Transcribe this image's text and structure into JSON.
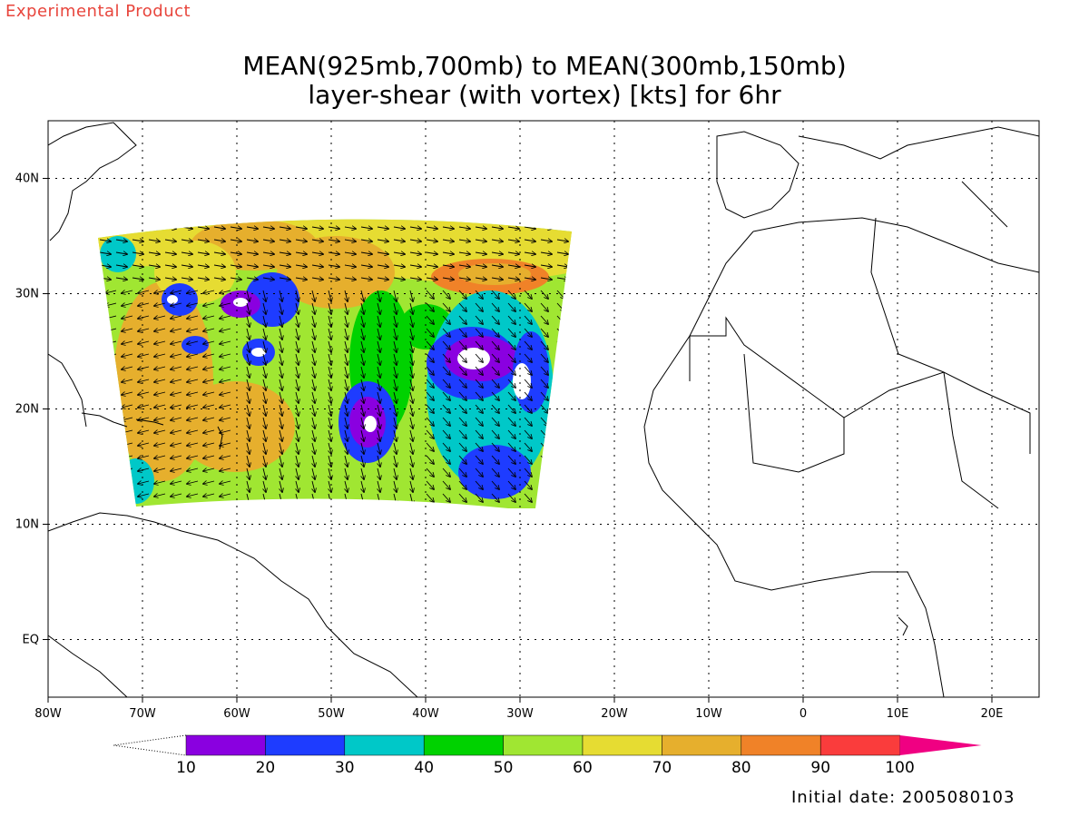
{
  "product_label": "Experimental Product",
  "title": {
    "line1": "MEAN(925mb,700mb) to MEAN(300mb,150mb)",
    "line2": "layer-shear (with vortex) [kts] for 6hr"
  },
  "map": {
    "lon_range": [
      -80,
      25
    ],
    "lat_range": [
      -5,
      45
    ],
    "x_ticks": [
      {
        "lon": -80,
        "label": "80W"
      },
      {
        "lon": -70,
        "label": "70W"
      },
      {
        "lon": -60,
        "label": "60W"
      },
      {
        "lon": -50,
        "label": "50W"
      },
      {
        "lon": -40,
        "label": "40W"
      },
      {
        "lon": -30,
        "label": "30W"
      },
      {
        "lon": -20,
        "label": "20W"
      },
      {
        "lon": -10,
        "label": "10W"
      },
      {
        "lon": 0,
        "label": "0"
      },
      {
        "lon": 10,
        "label": "10E"
      },
      {
        "lon": 20,
        "label": "20E"
      }
    ],
    "y_ticks": [
      {
        "lat": 0,
        "label": "EQ"
      },
      {
        "lat": 10,
        "label": "10N"
      },
      {
        "lat": 20,
        "label": "20N"
      },
      {
        "lat": 30,
        "label": "30N"
      },
      {
        "lat": 40,
        "label": "40N"
      }
    ],
    "grid": true
  },
  "colorbar": {
    "labels": [
      "10",
      "20",
      "30",
      "40",
      "50",
      "60",
      "70",
      "80",
      "90",
      "100"
    ],
    "colors": [
      "#8a00e0",
      "#1e3cff",
      "#00c8c8",
      "#00d200",
      "#a0e632",
      "#e6dc32",
      "#e6af2d",
      "#f08228",
      "#fa3c3c",
      "#f00082"
    ]
  },
  "initial_date": "Initial date: 2005080103"
}
